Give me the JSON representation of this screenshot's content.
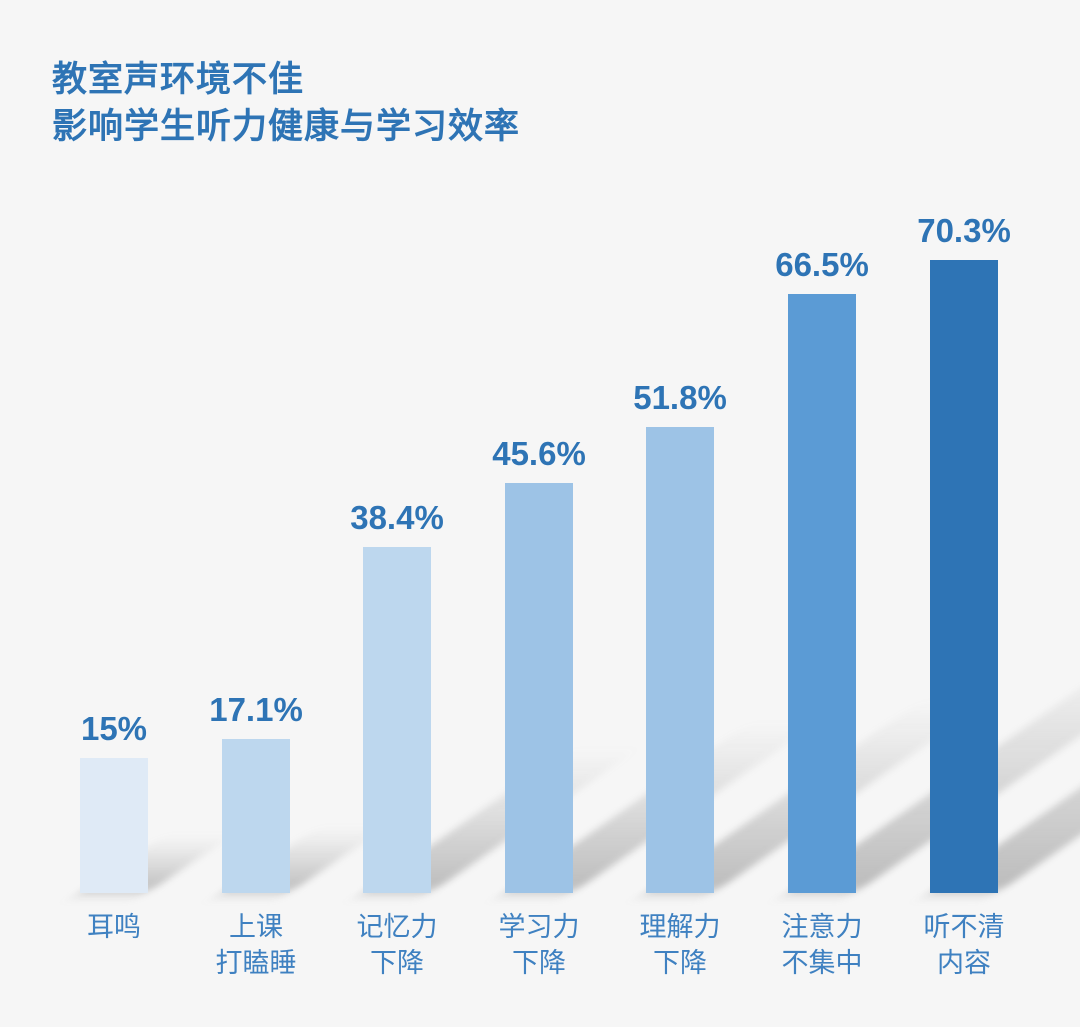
{
  "title": {
    "line1": "教室声环境不佳",
    "line2": "影响学生听力健康与学习效率"
  },
  "colors": {
    "background": "#f6f6f6",
    "title_text": "#2e74b5",
    "value_text": "#2e74b5",
    "category_text": "#3f81c1",
    "shadow": "#9a9a9a"
  },
  "chart_data": {
    "type": "bar",
    "title": "教室声环境不佳 影响学生听力健康与学习效率",
    "categories": [
      "耳鸣",
      "上课打瞌睡",
      "记忆力下降",
      "学习力下降",
      "理解力下降",
      "注意力不集中",
      "听不清内容"
    ],
    "values": [
      15,
      17.1,
      38.4,
      45.6,
      51.8,
      66.5,
      70.3
    ],
    "value_labels": [
      "15%",
      "17.1%",
      "38.4%",
      "45.6%",
      "51.8%",
      "66.5%",
      "70.3%"
    ],
    "bar_colors": [
      "#dfeaf6",
      "#bdd7ee",
      "#bdd7ee",
      "#9dc3e6",
      "#9dc3e6",
      "#5b9bd5",
      "#2e74b5"
    ],
    "xlabel": "",
    "ylabel": "",
    "ylim": [
      0,
      80
    ],
    "grid": false,
    "legend": false,
    "bars": [
      {
        "value": 15,
        "label": "15%",
        "color": "#dfeaf6",
        "cat1": "耳鸣",
        "cat2": ""
      },
      {
        "value": 17.1,
        "label": "17.1%",
        "color": "#bdd7ee",
        "cat1": "上课",
        "cat2": "打瞌睡"
      },
      {
        "value": 38.4,
        "label": "38.4%",
        "color": "#bdd7ee",
        "cat1": "记忆力",
        "cat2": "下降"
      },
      {
        "value": 45.6,
        "label": "45.6%",
        "color": "#9dc3e6",
        "cat1": "学习力",
        "cat2": "下降"
      },
      {
        "value": 51.8,
        "label": "51.8%",
        "color": "#9dc3e6",
        "cat1": "理解力",
        "cat2": "下降"
      },
      {
        "value": 66.5,
        "label": "66.5%",
        "color": "#5b9bd5",
        "cat1": "注意力",
        "cat2": "不集中"
      },
      {
        "value": 70.3,
        "label": "70.3%",
        "color": "#2e74b5",
        "cat1": "听不清",
        "cat2": "内容"
      }
    ]
  }
}
